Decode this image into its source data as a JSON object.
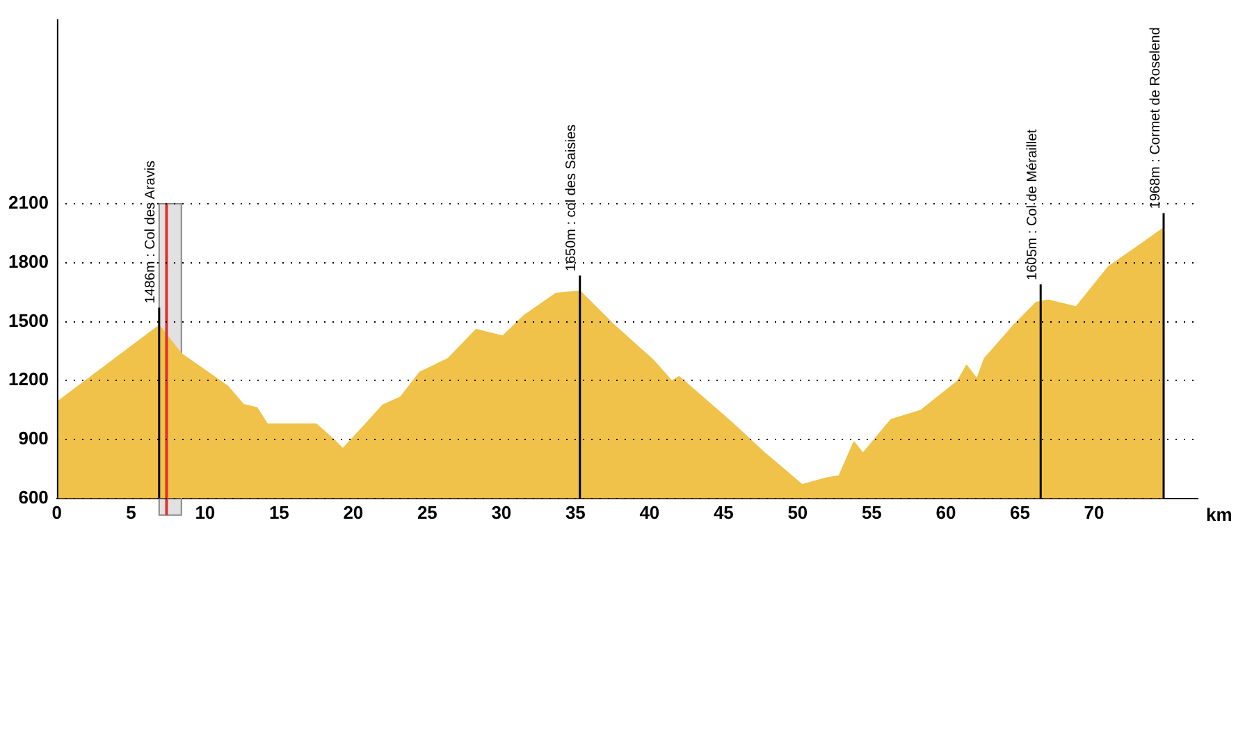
{
  "chart_data": {
    "type": "area",
    "xlabel": "km",
    "x": [
      0.1,
      6.9,
      8.4,
      11.5,
      12.6,
      13.5,
      14.2,
      17.5,
      18.8,
      19.3,
      20.7,
      22.0,
      23.2,
      24.5,
      26.4,
      28.3,
      30.1,
      31.5,
      33.7,
      35.3,
      37.6,
      40.3,
      41.5,
      42.0,
      45.5,
      47.8,
      48.7,
      50.3,
      51.9,
      52.8,
      53.8,
      54.4,
      56.3,
      58.3,
      60.8,
      61.4,
      62.1,
      62.6,
      64.6,
      66.1,
      66.9,
      68.8,
      71.0,
      73.2,
      74.7
    ],
    "series": [
      {
        "color": "#f0c24a",
        "values": [
          1095,
          1480,
          1336,
          1173,
          1077,
          1061,
          978,
          978,
          891,
          853,
          967,
          1075,
          1116,
          1242,
          1311,
          1460,
          1426,
          1529,
          1644,
          1655,
          1483,
          1300,
          1197,
          1219,
          990,
          829,
          772,
          669,
          703,
          715,
          887,
          829,
          1001,
          1047,
          1197,
          1277,
          1208,
          1311,
          1483,
          1598,
          1609,
          1575,
          1781,
          1896,
          1976
        ]
      }
    ],
    "xlim": [
      0,
      77
    ],
    "xticks": [
      0,
      5,
      10,
      15,
      20,
      25,
      30,
      35,
      40,
      45,
      50,
      55,
      60,
      65,
      70
    ],
    "ylim": [
      600,
      3040
    ],
    "yticks": [
      600,
      900,
      1200,
      1500,
      1800,
      2100
    ],
    "grid": "y",
    "legend": false,
    "annotations": [
      {
        "text": "1486m : Col des Aravis",
        "x": 6.9,
        "y": 1486
      },
      {
        "text": "1650m : col des Saisies",
        "x": 35.3,
        "y": 1650
      },
      {
        "text": "1605m : Col de Méraillet",
        "x": 66.4,
        "y": 1605
      },
      {
        "text": "1968m : Cormet de Roselend",
        "x": 74.7,
        "y": 1968
      }
    ],
    "bands": [
      {
        "axis": "x",
        "from": 6.9,
        "to": 8.4,
        "color": "#888888"
      }
    ],
    "ref_lines": [
      {
        "axis": "x",
        "value": 7.4,
        "color": "#e0302a"
      }
    ]
  }
}
